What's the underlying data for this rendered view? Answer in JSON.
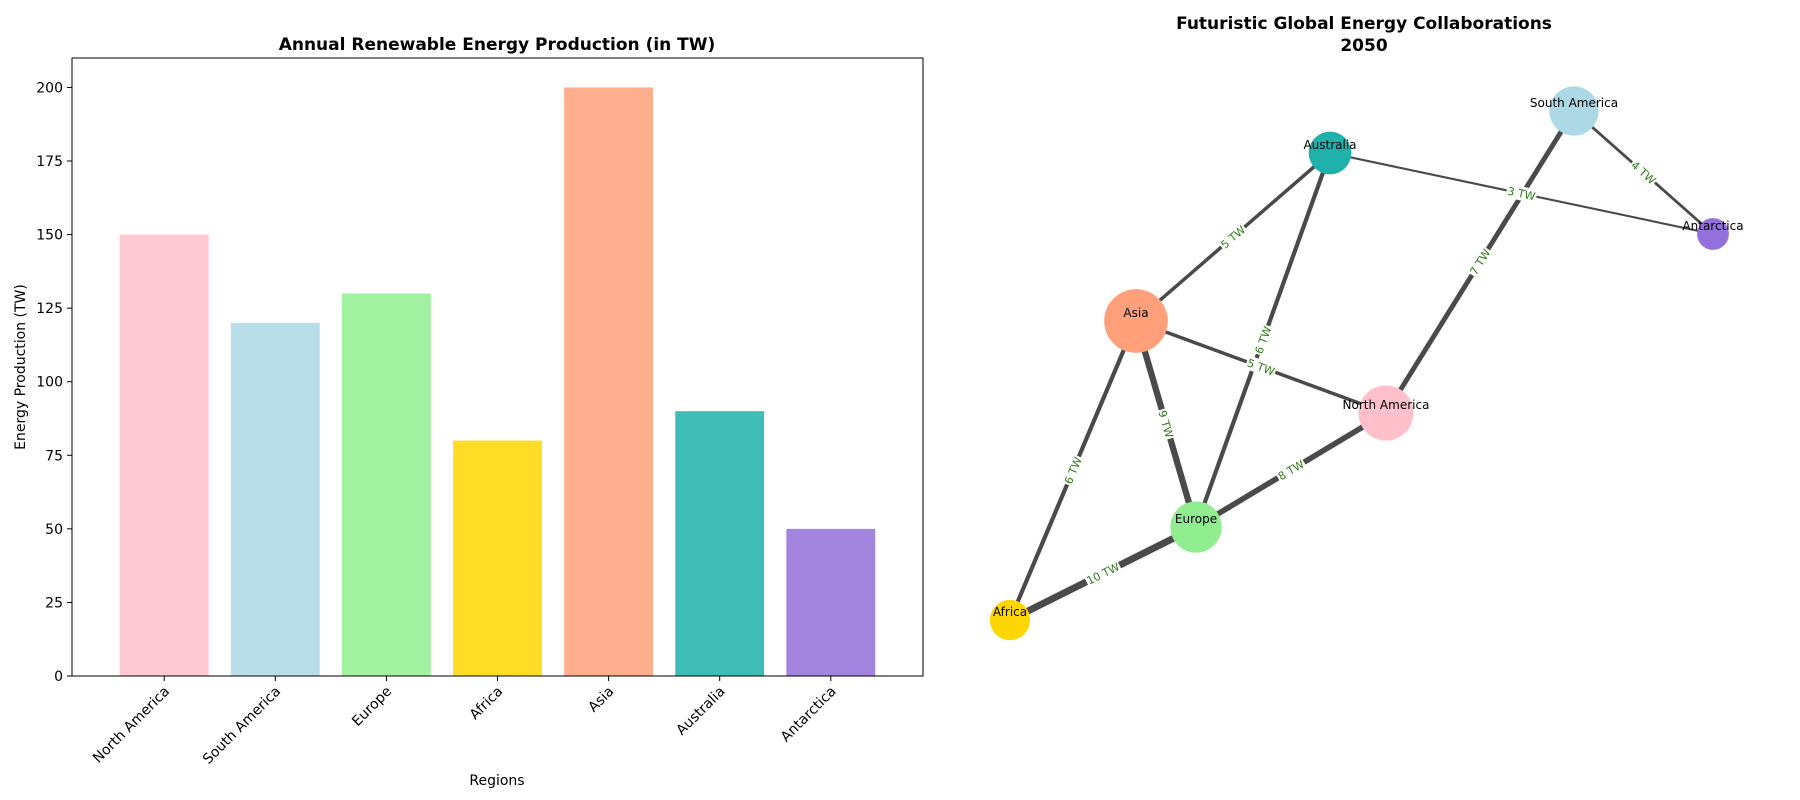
{
  "chart_data": [
    {
      "type": "bar",
      "title": "Annual Renewable Energy Production (in TW)",
      "xlabel": "Regions",
      "ylabel": "Energy Production (TW)",
      "categories": [
        "North America",
        "South America",
        "Europe",
        "Africa",
        "Asia",
        "Australia",
        "Antarctica"
      ],
      "values": [
        150,
        120,
        130,
        80,
        200,
        90,
        50
      ],
      "colors": [
        "#ffc0cb",
        "#add8e6",
        "#90ee90",
        "#ffd700",
        "#ffa07a",
        "#20b2aa",
        "#9370db"
      ],
      "ylim": [
        0,
        210
      ],
      "yticks": [
        0,
        25,
        50,
        75,
        100,
        125,
        150,
        175,
        200
      ],
      "grid": false
    },
    {
      "type": "network",
      "title": "Futuristic Global Energy Collaborations",
      "subtitle": "2050",
      "nodes": [
        {
          "name": "North America",
          "value": 150,
          "color": "#ffc0cb"
        },
        {
          "name": "South America",
          "value": 120,
          "color": "#add8e6"
        },
        {
          "name": "Europe",
          "value": 130,
          "color": "#90ee90"
        },
        {
          "name": "Africa",
          "value": 80,
          "color": "#ffd700"
        },
        {
          "name": "Asia",
          "value": 200,
          "color": "#ffa07a"
        },
        {
          "name": "Australia",
          "value": 90,
          "color": "#20b2aa"
        },
        {
          "name": "Antarctica",
          "value": 50,
          "color": "#9370db"
        }
      ],
      "edges": [
        {
          "source": "Africa",
          "target": "Europe",
          "value": 10,
          "label": "10 TW"
        },
        {
          "source": "Asia",
          "target": "Europe",
          "value": 9,
          "label": "9 TW"
        },
        {
          "source": "Europe",
          "target": "North America",
          "value": 8,
          "label": "8 TW"
        },
        {
          "source": "North America",
          "target": "South America",
          "value": 7,
          "label": "7 TW"
        },
        {
          "source": "Asia",
          "target": "Africa",
          "value": 6,
          "label": "6 TW"
        },
        {
          "source": "Australia",
          "target": "Europe",
          "value": 6,
          "label": "6 TW"
        },
        {
          "source": "Asia",
          "target": "Australia",
          "value": 5,
          "label": "5 TW"
        },
        {
          "source": "Asia",
          "target": "North America",
          "value": 5,
          "label": "5 TW"
        },
        {
          "source": "South America",
          "target": "Antarctica",
          "value": 4,
          "label": "4 TW"
        },
        {
          "source": "Australia",
          "target": "Antarctica",
          "value": 3,
          "label": "3 TW"
        }
      ]
    }
  ]
}
